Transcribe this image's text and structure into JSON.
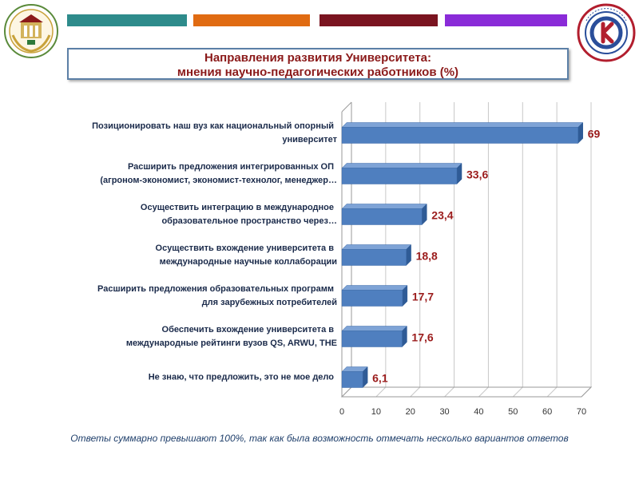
{
  "header": {
    "bars": [
      {
        "color": "#2e8b8b"
      },
      {
        "color": "#e06b12"
      },
      {
        "color": "#7a1420"
      },
      {
        "color": "#8a2bd8"
      }
    ]
  },
  "title": {
    "line1": "Направления  развития Университета:",
    "line2": "мнения научно-педагогических работников (%)"
  },
  "chart_data": {
    "type": "bar",
    "orientation": "horizontal",
    "categories": [
      [
        "Позиционировать наш вуз как национальный опорный",
        "университет"
      ],
      [
        "Расширить предложения интегрированных ОП",
        "(агроном-экономист, экономист-технолог, менеджер…"
      ],
      [
        "Осуществить интеграцию в международное",
        "образовательное пространство через…"
      ],
      [
        "Осуществить вхождение университета в",
        "международные научные коллаборации"
      ],
      [
        "Расширить предложения образовательных программ",
        "для зарубежных потребителей"
      ],
      [
        "Обеспечить вхождение университета в",
        "международные рейтинги вузов QS, ARWU, THE"
      ],
      [
        "Не знаю, что предложить, это не мое дело"
      ]
    ],
    "values": [
      69,
      33.6,
      23.4,
      18.8,
      17.7,
      17.6,
      6.1
    ],
    "value_labels": [
      "69",
      "33,6",
      "23,4",
      "18,8",
      "17,7",
      "17,6",
      "6,1"
    ],
    "x_ticks": [
      0,
      10,
      20,
      30,
      40,
      50,
      60,
      70
    ],
    "xlim": [
      0,
      70
    ],
    "grid": true,
    "bar_color": "#4f7fbf",
    "label_color": "#9b1c1c"
  },
  "footnote": "Ответы суммарно превышают 100%, так как была возможность отмечать несколько вариантов ответов"
}
